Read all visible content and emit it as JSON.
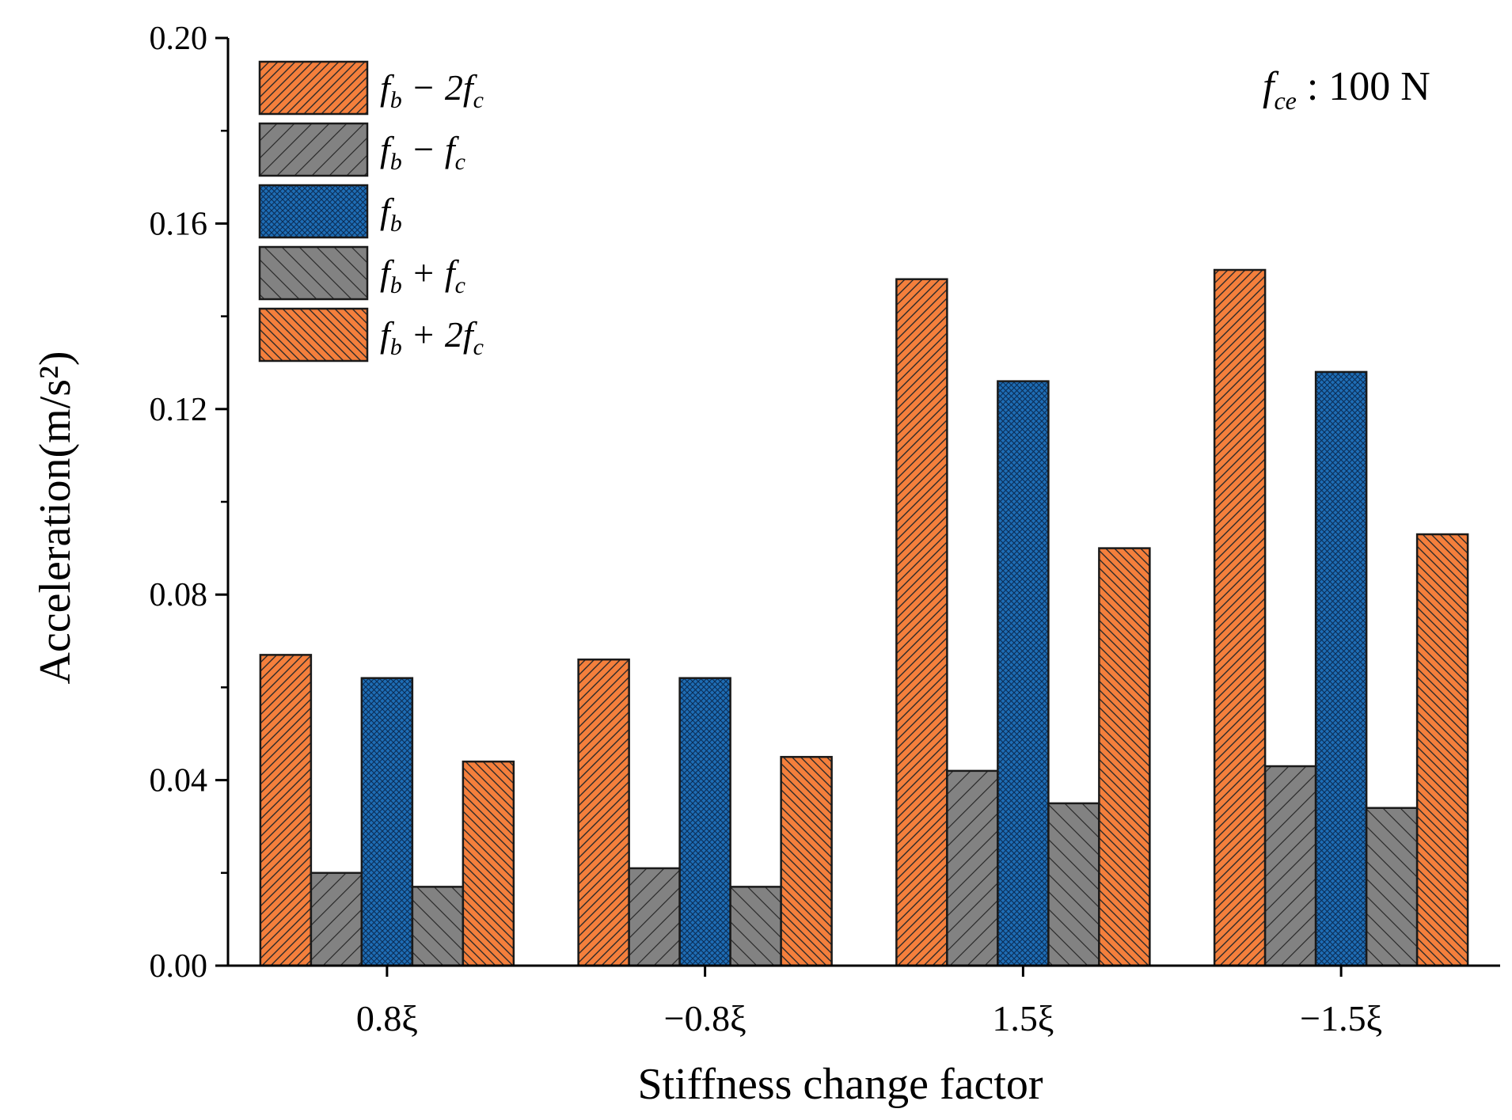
{
  "chart_data": {
    "type": "bar",
    "title": "",
    "xlabel": "Stiffness change factor",
    "ylabel": "Acceleration(m/s²)",
    "ylim": [
      0,
      0.2
    ],
    "yticks": [
      "0.00",
      "0.04",
      "0.08",
      "0.12",
      "0.16",
      "0.20"
    ],
    "ytick_values": [
      0,
      0.04,
      0.08,
      0.12,
      0.16,
      0.2
    ],
    "categories": [
      "0.8ξ",
      "−0.8ξ",
      "1.5ξ",
      "−1.5ξ"
    ],
    "grid": false,
    "legend_position": "top-left",
    "annotation": "f_ce : 100 N",
    "annotation_parts": {
      "main": "f",
      "sub": "ce",
      "rest": " :  100 N"
    },
    "series": [
      {
        "name": "fb − 2fc",
        "legend_text": "f_b − 2f_c",
        "color": "#f47f3c",
        "pattern": "hatch-forward-dense",
        "values": [
          0.067,
          0.066,
          0.148,
          0.15
        ]
      },
      {
        "name": "fb − fc",
        "legend_text": "f_b − f_c",
        "color": "#828282",
        "pattern": "hatch-forward-sparse",
        "values": [
          0.02,
          0.021,
          0.042,
          0.043
        ]
      },
      {
        "name": "fb",
        "legend_text": "f_b",
        "color": "#1e6db5",
        "pattern": "crosshatch",
        "values": [
          0.062,
          0.062,
          0.126,
          0.128
        ]
      },
      {
        "name": "fb + fc",
        "legend_text": "f_b + f_c",
        "color": "#828282",
        "pattern": "hatch-back-sparse",
        "values": [
          0.017,
          0.017,
          0.035,
          0.034
        ]
      },
      {
        "name": "fb + 2fc",
        "legend_text": "f_b + 2f_c",
        "color": "#f47f3c",
        "pattern": "hatch-back-dense",
        "values": [
          0.044,
          0.045,
          0.09,
          0.093
        ]
      }
    ],
    "legend_labels": [
      {
        "parts": [
          [
            "f",
            ""
          ],
          [
            "b",
            "sub"
          ],
          [
            " − 2",
            ""
          ],
          [
            "f",
            ""
          ],
          [
            "c",
            "sub"
          ]
        ]
      },
      {
        "parts": [
          [
            "f",
            ""
          ],
          [
            "b",
            "sub"
          ],
          [
            " − ",
            ""
          ],
          [
            "f",
            ""
          ],
          [
            "c",
            "sub"
          ]
        ]
      },
      {
        "parts": [
          [
            "f",
            ""
          ],
          [
            "b",
            "sub"
          ]
        ]
      },
      {
        "parts": [
          [
            "f",
            ""
          ],
          [
            "b",
            "sub"
          ],
          [
            " + ",
            ""
          ],
          [
            "f",
            ""
          ],
          [
            "c",
            "sub"
          ]
        ]
      },
      {
        "parts": [
          [
            "f",
            ""
          ],
          [
            "b",
            "sub"
          ],
          [
            " + 2",
            ""
          ],
          [
            "f",
            ""
          ],
          [
            "c",
            "sub"
          ]
        ]
      }
    ]
  }
}
